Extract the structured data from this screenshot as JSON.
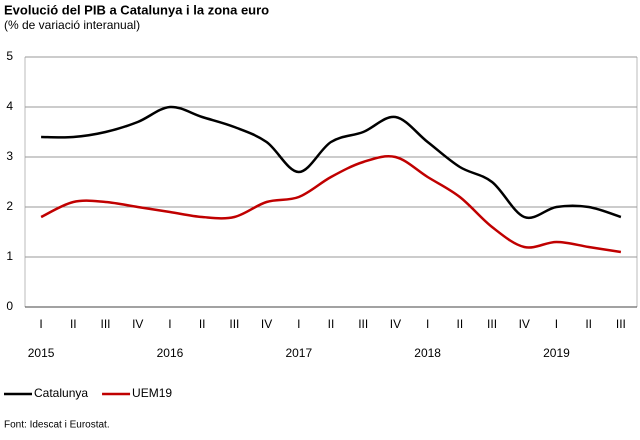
{
  "chart_data": {
    "type": "line",
    "title": "Evolució del PIB a Catalunya i la zona euro",
    "subtitle": "(% de variació interanual)",
    "categories": [
      "I",
      "II",
      "III",
      "IV",
      "I",
      "II",
      "III",
      "IV",
      "I",
      "II",
      "III",
      "IV",
      "I",
      "II",
      "III",
      "IV",
      "I",
      "II",
      "III"
    ],
    "groups": [
      {
        "label": "2015",
        "size": 4
      },
      {
        "label": "2016",
        "size": 4
      },
      {
        "label": "2017",
        "size": 4
      },
      {
        "label": "2018",
        "size": 4
      },
      {
        "label": "2019",
        "size": 3
      }
    ],
    "series": [
      {
        "name": "Catalunya",
        "color": "#000000",
        "values": [
          3.4,
          3.4,
          3.5,
          3.7,
          4.0,
          3.8,
          3.6,
          3.3,
          2.7,
          3.3,
          3.5,
          3.8,
          3.3,
          2.8,
          2.5,
          1.8,
          2.0,
          2.0,
          1.8
        ]
      },
      {
        "name": "UEM19",
        "color": "#c00000",
        "values": [
          1.8,
          2.1,
          2.1,
          2.0,
          1.9,
          1.8,
          1.8,
          2.1,
          2.2,
          2.6,
          2.9,
          3.0,
          2.6,
          2.2,
          1.6,
          1.2,
          1.3,
          1.2,
          1.1
        ]
      }
    ],
    "ylim": [
      0,
      5
    ],
    "yticks": [
      0,
      1,
      2,
      3,
      4,
      5
    ],
    "grid": true,
    "legend": "bottom-left",
    "source": "Font: Idescat i Eurostat."
  }
}
